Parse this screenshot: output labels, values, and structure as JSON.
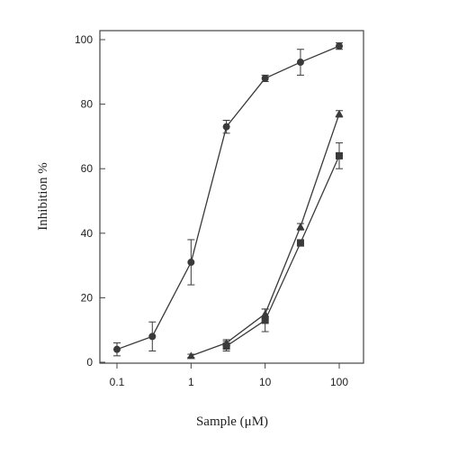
{
  "chart_data": {
    "type": "line",
    "title": "",
    "xlabel": "Sample (μM)",
    "ylabel": "Inhibition %",
    "xscale": "log",
    "xlim": [
      0.1,
      100
    ],
    "ylim": [
      0,
      100
    ],
    "xticks": [
      0.1,
      1,
      10,
      100
    ],
    "xtick_labels": [
      "0.1",
      "1",
      "10",
      "100"
    ],
    "yticks": [
      0,
      20,
      40,
      60,
      80,
      100
    ],
    "ytick_labels": [
      "0",
      "20",
      "40",
      "60",
      "80",
      "100"
    ],
    "grid": false,
    "legend": false,
    "series": [
      {
        "marker": "circle",
        "color": "#3a3a3a",
        "x": [
          0.1,
          0.3,
          1,
          3,
          10,
          30,
          100
        ],
        "y": [
          4,
          8,
          31,
          73,
          88,
          93,
          98
        ],
        "err": [
          2,
          4.5,
          7,
          2,
          1,
          4,
          1
        ]
      },
      {
        "marker": "triangle",
        "color": "#3a3a3a",
        "x": [
          1,
          3,
          10,
          30,
          100
        ],
        "y": [
          2,
          6,
          15,
          42,
          77
        ],
        "err": [
          0.5,
          1,
          1.5,
          1,
          1
        ]
      },
      {
        "marker": "square",
        "color": "#3a3a3a",
        "x": [
          3,
          10,
          30,
          100
        ],
        "y": [
          5,
          13,
          37,
          64
        ],
        "err": [
          1.5,
          3.5,
          1,
          4
        ]
      }
    ]
  }
}
